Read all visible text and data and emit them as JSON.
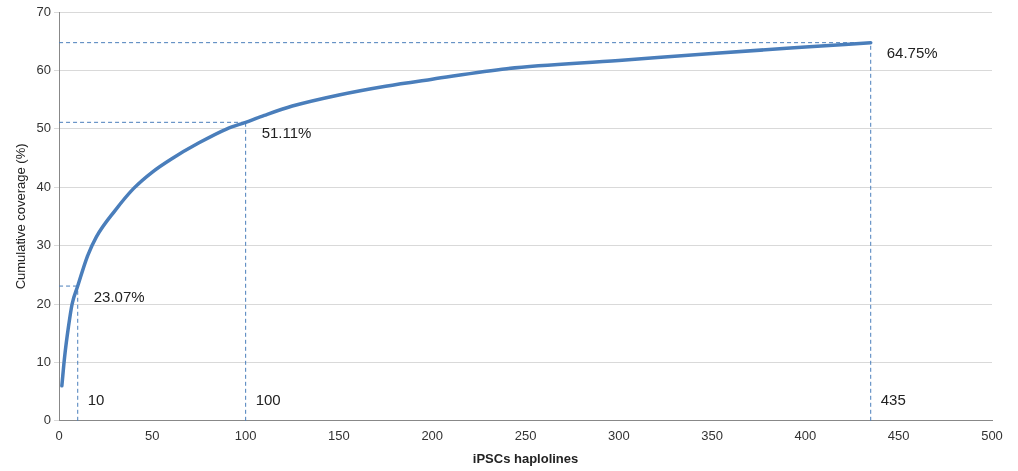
{
  "chart_data": {
    "type": "line",
    "xlabel": "iPSCs haplolines",
    "ylabel": "Cumulative coverage (%)",
    "series": [
      {
        "color": "#4a7ebb",
        "x": [
          1.5,
          3,
          5,
          7,
          10,
          15,
          20,
          30,
          40,
          50,
          60,
          75,
          90,
          100,
          110,
          125,
          150,
          175,
          200,
          240,
          300,
          350,
          400,
          435
        ],
        "values": [
          6,
          11,
          16,
          20,
          23.07,
          28,
          31.5,
          36,
          39.8,
          42.6,
          44.8,
          47.6,
          50,
          51.11,
          52.3,
          53.9,
          55.8,
          57.3,
          58.5,
          60.3,
          61.7,
          62.9,
          64,
          64.75
        ]
      }
    ],
    "xlim": [
      0,
      500
    ],
    "xticks": [
      0,
      50,
      100,
      150,
      200,
      250,
      300,
      350,
      400,
      450,
      500
    ],
    "ylim": [
      0,
      70
    ],
    "yticks": [
      0,
      10,
      20,
      30,
      40,
      50,
      60,
      70
    ],
    "grid": "y",
    "legend": false,
    "marker": "none",
    "line_style": "solid",
    "ref_lines": [
      {
        "axis": "x",
        "value": 10,
        "label": "10",
        "color": "#4a7ebb",
        "line_style": "dashed"
      },
      {
        "axis": "x",
        "value": 100,
        "label": "100",
        "color": "#4a7ebb",
        "line_style": "dashed"
      },
      {
        "axis": "x",
        "value": 435,
        "label": "435",
        "color": "#4a7ebb",
        "line_style": "dashed"
      },
      {
        "axis": "y",
        "value": 23.07,
        "label": "23.07%",
        "color": "#4a7ebb",
        "line_style": "dashed"
      },
      {
        "axis": "y",
        "value": 51.11,
        "label": "51.11%",
        "color": "#4a7ebb",
        "line_style": "dashed"
      },
      {
        "axis": "y",
        "value": 64.75,
        "label": "64.75%",
        "color": "#4a7ebb",
        "line_style": "dashed"
      }
    ]
  }
}
